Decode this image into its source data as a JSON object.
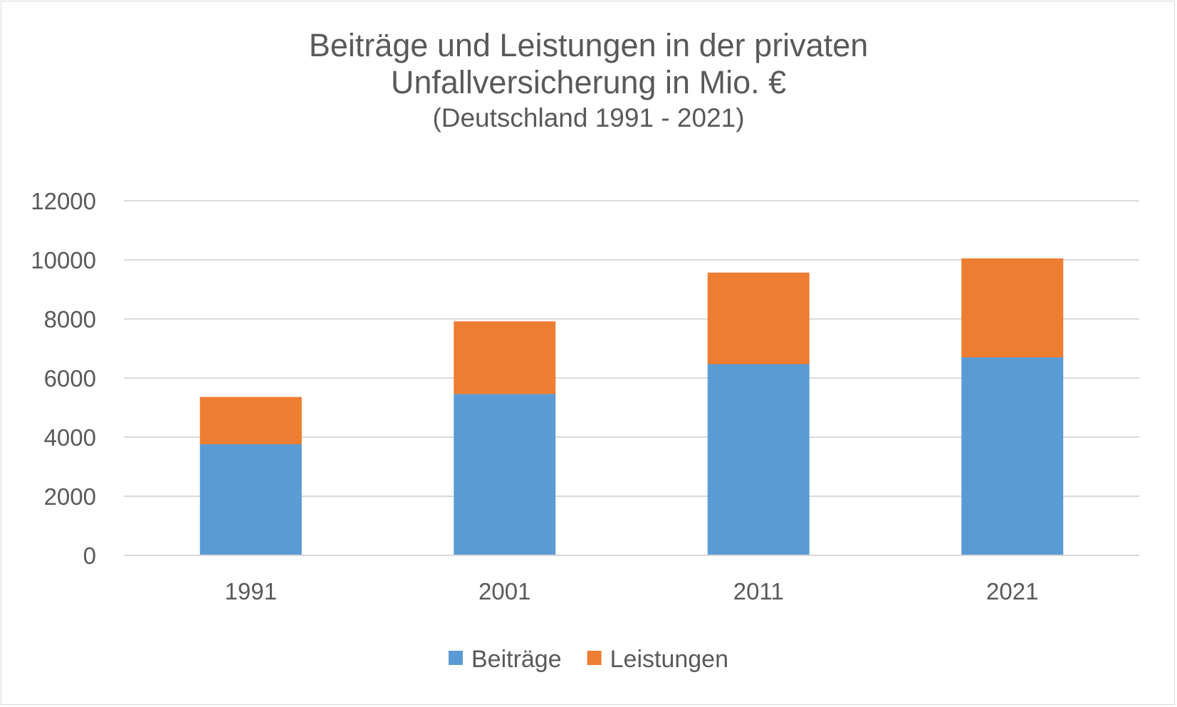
{
  "chart_data": {
    "type": "bar",
    "stacked": true,
    "title": "Beiträge und Leistungen in der privaten Unfallversicherung in Mio. €",
    "title_lines": [
      "Beiträge und Leistungen in der privaten",
      "Unfallversicherung in Mio. €"
    ],
    "subtitle": "(Deutschland 1991 - 2021)",
    "xlabel": "",
    "ylabel": "",
    "categories": [
      "1991",
      "2001",
      "2011",
      "2021"
    ],
    "series": [
      {
        "name": "Beiträge",
        "color": "#5b9bd5",
        "values": [
          3760,
          5460,
          6470,
          6700
        ]
      },
      {
        "name": "Leistungen",
        "color": "#ed7d31",
        "values": [
          1600,
          2460,
          3100,
          3350
        ]
      }
    ],
    "ylim": [
      0,
      12000
    ],
    "yticks": [
      0,
      2000,
      4000,
      6000,
      8000,
      10000,
      12000
    ],
    "grid": true,
    "legend_position": "bottom"
  }
}
